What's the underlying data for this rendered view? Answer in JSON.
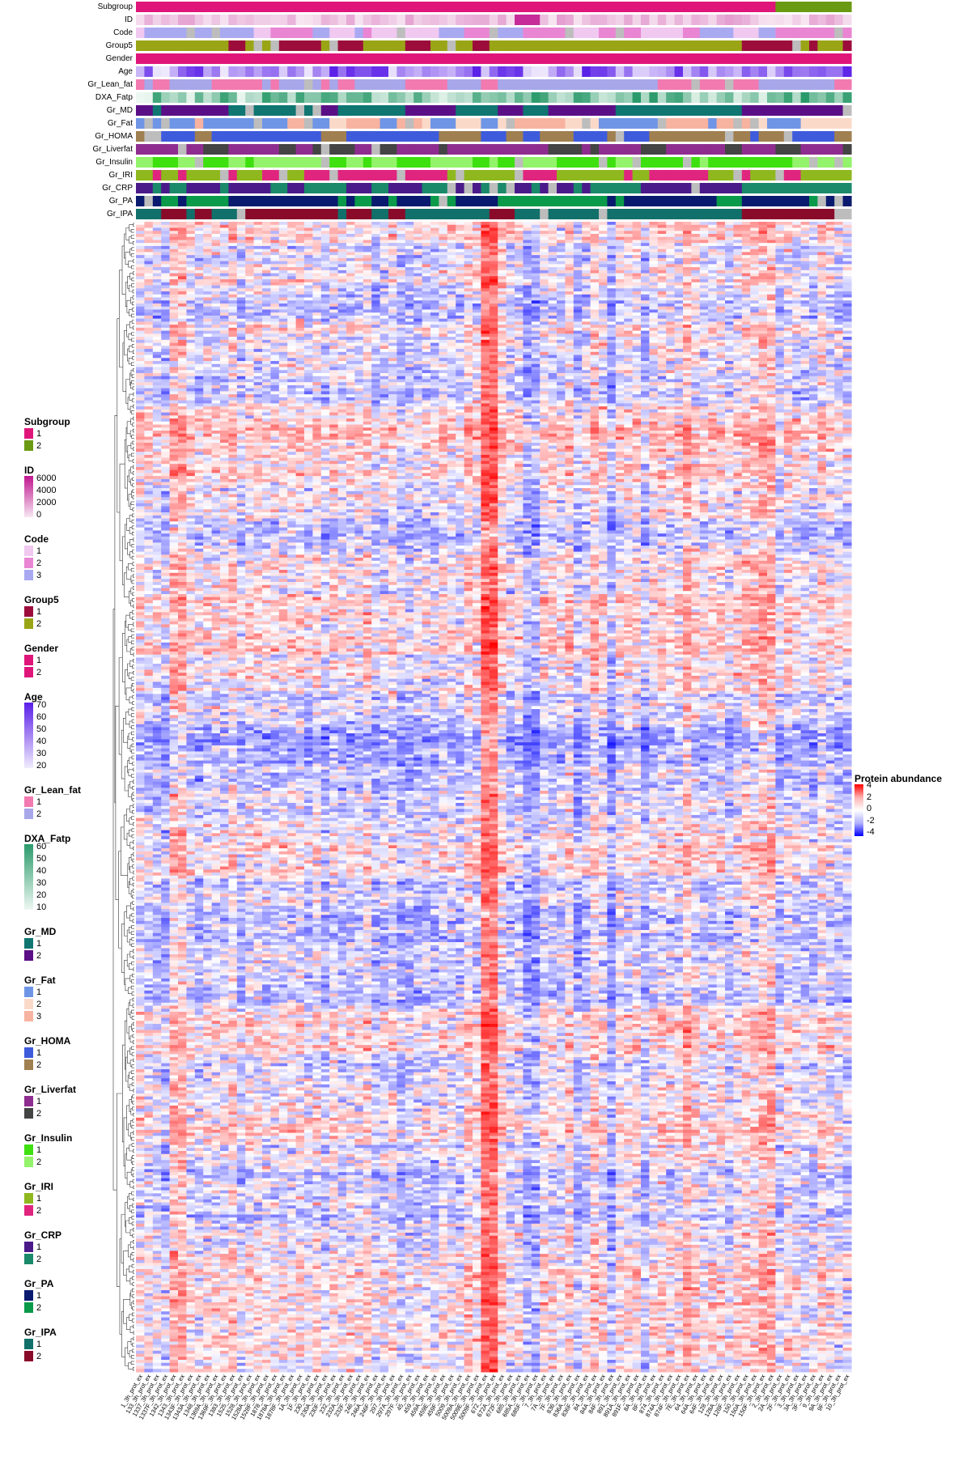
{
  "annotation_tracks": [
    {
      "label": "Subgroup",
      "kind": "categorical"
    },
    {
      "label": "ID",
      "kind": "continuous"
    },
    {
      "label": "Code",
      "kind": "categorical"
    },
    {
      "label": "Group5",
      "kind": "categorical"
    },
    {
      "label": "Gender",
      "kind": "categorical"
    },
    {
      "label": "Age",
      "kind": "continuous"
    },
    {
      "label": "Gr_Lean_fat",
      "kind": "categorical"
    },
    {
      "label": "DXA_Fatp",
      "kind": "continuous"
    },
    {
      "label": "Gr_MD",
      "kind": "categorical"
    },
    {
      "label": "Gr_Fat",
      "kind": "categorical"
    },
    {
      "label": "Gr_HOMA",
      "kind": "categorical"
    },
    {
      "label": "Gr_Liverfat",
      "kind": "categorical"
    },
    {
      "label": "Gr_Insulin",
      "kind": "categorical"
    },
    {
      "label": "Gr_IRI",
      "kind": "categorical"
    },
    {
      "label": "Gr_CRP",
      "kind": "categorical"
    },
    {
      "label": "Gr_PA",
      "kind": "categorical"
    },
    {
      "label": "Gr_IPA",
      "kind": "categorical"
    }
  ],
  "legends": [
    {
      "title": "Subgroup",
      "type": "discrete",
      "items": [
        {
          "label": "1",
          "color": "#e0157a"
        },
        {
          "label": "2",
          "color": "#6a9a12"
        }
      ]
    },
    {
      "title": "ID",
      "type": "gradient",
      "ticks": [
        "6000",
        "4000",
        "2000",
        "0"
      ],
      "colors": [
        "#c0168f",
        "#f7e6f2"
      ]
    },
    {
      "title": "Code",
      "type": "discrete",
      "items": [
        {
          "label": "1",
          "color": "#f0c8f0"
        },
        {
          "label": "2",
          "color": "#e985d3"
        },
        {
          "label": "3",
          "color": "#a9a9f2"
        }
      ]
    },
    {
      "title": "Group5",
      "type": "discrete",
      "items": [
        {
          "label": "1",
          "color": "#9c0d3c"
        },
        {
          "label": "2",
          "color": "#9aa516"
        }
      ]
    },
    {
      "title": "Gender",
      "type": "discrete",
      "items": [
        {
          "label": "1",
          "color": "#e0157a"
        },
        {
          "label": "2",
          "color": "#e0157a"
        }
      ]
    },
    {
      "title": "Age",
      "type": "gradient",
      "ticks": [
        "70",
        "60",
        "50",
        "40",
        "30",
        "20"
      ],
      "colors": [
        "#5a1ee8",
        "#f1ecfd"
      ]
    },
    {
      "title": "Gr_Lean_fat",
      "type": "discrete",
      "items": [
        {
          "label": "1",
          "color": "#f27ab0"
        },
        {
          "label": "2",
          "color": "#a7a7ea"
        }
      ]
    },
    {
      "title": "DXA_Fatp",
      "type": "gradient",
      "ticks": [
        "60",
        "50",
        "40",
        "30",
        "20",
        "10"
      ],
      "colors": [
        "#2a9a6a",
        "#eef8f2"
      ]
    },
    {
      "title": "Gr_MD",
      "type": "discrete",
      "items": [
        {
          "label": "1",
          "color": "#0f7672"
        },
        {
          "label": "2",
          "color": "#5b0f86"
        }
      ]
    },
    {
      "title": "Gr_Fat",
      "type": "discrete",
      "items": [
        {
          "label": "1",
          "color": "#6f95e6"
        },
        {
          "label": "2",
          "color": "#fbd9c9"
        },
        {
          "label": "3",
          "color": "#f7b3a0"
        }
      ]
    },
    {
      "title": "Gr_HOMA",
      "type": "discrete",
      "items": [
        {
          "label": "1",
          "color": "#3e5bdc"
        },
        {
          "label": "2",
          "color": "#a08050"
        }
      ]
    },
    {
      "title": "Gr_Liverfat",
      "type": "discrete",
      "items": [
        {
          "label": "1",
          "color": "#8e2d8f"
        },
        {
          "label": "2",
          "color": "#444444"
        }
      ]
    },
    {
      "title": "Gr_Insulin",
      "type": "discrete",
      "items": [
        {
          "label": "1",
          "color": "#3fe010"
        },
        {
          "label": "2",
          "color": "#93f36a"
        }
      ]
    },
    {
      "title": "Gr_IRI",
      "type": "discrete",
      "items": [
        {
          "label": "1",
          "color": "#8fb81f"
        },
        {
          "label": "2",
          "color": "#e0257f"
        }
      ]
    },
    {
      "title": "Gr_CRP",
      "type": "discrete",
      "items": [
        {
          "label": "1",
          "color": "#4a1a8a"
        },
        {
          "label": "2",
          "color": "#1a8a6a"
        }
      ]
    },
    {
      "title": "Gr_PA",
      "type": "discrete",
      "items": [
        {
          "label": "1",
          "color": "#0a1a6e"
        },
        {
          "label": "2",
          "color": "#0a9a4a"
        }
      ]
    },
    {
      "title": "Gr_IPA",
      "type": "discrete",
      "items": [
        {
          "label": "1",
          "color": "#12706a"
        },
        {
          "label": "2",
          "color": "#8a0a2a"
        }
      ]
    }
  ],
  "chart_data": {
    "type": "heatmap",
    "title": "",
    "value_legend_title": "Protein abundance",
    "value_range": [
      -4,
      4
    ],
    "value_ticks": [
      "4",
      "2",
      "0",
      "-2",
      "-4"
    ],
    "color_scale": {
      "low": "#0000ff",
      "mid": "#ffffff",
      "high": "#ff0000"
    },
    "n_samples": 85,
    "n_rows": 380,
    "row_dendrogram": true,
    "column_labels": [
      "1_3h_prot_ex",
      "133_3h_prot_ex",
      "1337_3h_prot_ex",
      "1337F_3h_prot_ex",
      "1342_3h_prot_ex",
      "1343_3h_prot_ex",
      "1343F_3h_prot_ex",
      "1343A_3h_prot_ex",
      "1348_3h_prot_ex",
      "1369A_3h_prot_ex",
      "1369F_3h_prot_ex",
      "1383_3h_prot_ex",
      "1525_3h_prot_ex",
      "1528_3h_prot_ex",
      "1528A_3h_prot_ex",
      "1528F_3h_prot_ex",
      "1878_3h_prot_ex",
      "1878A_3h_prot_ex",
      "1878F_3h_prot_ex",
      "1A_3h_prot_ex",
      "1F_3h_prot_ex",
      "230_3h_prot_ex",
      "230A_3h_prot_ex",
      "230F_3h_prot_ex",
      "232_3h_prot_ex",
      "232A_3h_prot_ex",
      "232F_3h_prot_ex",
      "246_3h_prot_ex",
      "246A_3h_prot_ex",
      "246F_3h_prot_ex",
      "297_3h_prot_ex",
      "297A_3h_prot_ex",
      "297F_3h_prot_ex",
      "45_3h_prot_ex",
      "459_3h_prot_ex",
      "459A_3h_prot_ex",
      "459E_3h_prot_ex",
      "459F_3h_prot_ex",
      "5009_3h_prot_ex",
      "5009A_3h_prot_ex",
      "5009E_3h_prot_ex",
      "5009F_3h_prot_ex",
      "672_3h_prot_ex",
      "672A_3h_prot_ex",
      "672F_3h_prot_ex",
      "685_3h_prot_ex",
      "685A_3h_prot_ex",
      "685F_3h_prot_ex",
      "7_3h_prot_ex",
      "7A_3h_prot_ex",
      "7F_3h_prot_ex",
      "836_3h_prot_ex",
      "836A_3h_prot_ex",
      "836F_3h_prot_ex",
      "84_3h_prot_ex",
      "84A_3h_prot_ex",
      "84F_3h_prot_ex",
      "891_3h_prot_ex",
      "891A_3h_prot_ex",
      "891F_3h_prot_ex",
      "8A_3h_prot_ex",
      "8F_3h_prot_ex",
      "874_3h_prot_ex",
      "874A_3h_prot_ex",
      "874F_3h_prot_ex",
      "7E_3h_prot_ex",
      "64_3h_prot_ex",
      "64A_3h_prot_ex",
      "64F_3h_prot_ex",
      "128_3h_prot_ex",
      "128A_3h_prot_ex",
      "128F_3h_prot_ex",
      "150_3h_prot_ex",
      "150A_3h_prot_ex",
      "150F_3h_prot_ex",
      "2_3h_prot_ex",
      "2A_3h_prot_ex",
      "2F_3h_prot_ex",
      "3_3h_prot_ex",
      "3A_3h_prot_ex",
      "3F_3h_prot_ex",
      "9_3h_prot_ex",
      "9A_3h_prot_ex",
      "9F_3h_prot_ex",
      "10_3h_prot_ex"
    ]
  }
}
